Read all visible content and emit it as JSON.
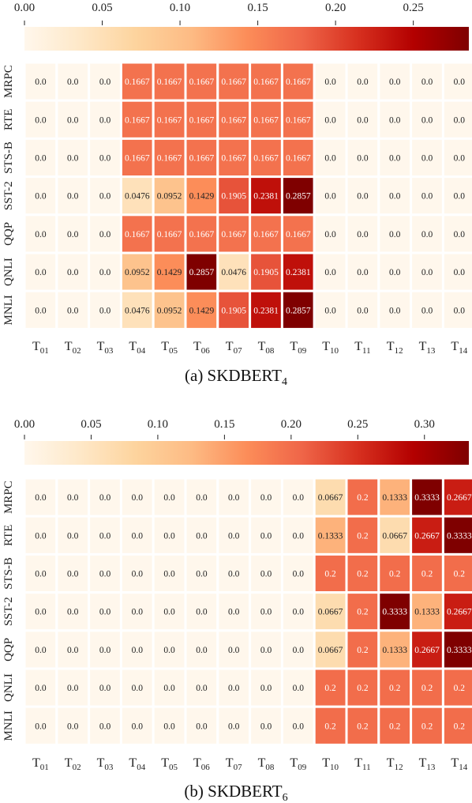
{
  "chart_data": [
    {
      "type": "heatmap",
      "caption_prefix": "(a) SKDBERT",
      "caption_subscript": "4",
      "colorbar": {
        "ticks": [
          "0.00",
          "0.05",
          "0.10",
          "0.15",
          "0.20",
          "0.25"
        ],
        "tick_values": [
          0,
          0.05,
          0.1,
          0.15,
          0.2,
          0.25
        ],
        "range": [
          0,
          0.2857
        ]
      },
      "rows": [
        "MRPC",
        "RTE",
        "STS-B",
        "SST-2",
        "QQP",
        "QNLI",
        "MNLI"
      ],
      "columns": [
        "01",
        "02",
        "03",
        "04",
        "05",
        "06",
        "07",
        "08",
        "09",
        "10",
        "11",
        "12",
        "13",
        "14"
      ],
      "column_prefix": "T",
      "values": [
        [
          0.0,
          0.0,
          0.0,
          0.1667,
          0.1667,
          0.1667,
          0.1667,
          0.1667,
          0.1667,
          0.0,
          0.0,
          0.0,
          0.0,
          0.0
        ],
        [
          0.0,
          0.0,
          0.0,
          0.1667,
          0.1667,
          0.1667,
          0.1667,
          0.1667,
          0.1667,
          0.0,
          0.0,
          0.0,
          0.0,
          0.0
        ],
        [
          0.0,
          0.0,
          0.0,
          0.1667,
          0.1667,
          0.1667,
          0.1667,
          0.1667,
          0.1667,
          0.0,
          0.0,
          0.0,
          0.0,
          0.0
        ],
        [
          0.0,
          0.0,
          0.0,
          0.0476,
          0.0952,
          0.1429,
          0.1905,
          0.2381,
          0.2857,
          0.0,
          0.0,
          0.0,
          0.0,
          0.0
        ],
        [
          0.0,
          0.0,
          0.0,
          0.1667,
          0.1667,
          0.1667,
          0.1667,
          0.1667,
          0.1667,
          0.0,
          0.0,
          0.0,
          0.0,
          0.0
        ],
        [
          0.0,
          0.0,
          0.0,
          0.0952,
          0.1429,
          0.2857,
          0.0476,
          0.1905,
          0.2381,
          0.0,
          0.0,
          0.0,
          0.0,
          0.0
        ],
        [
          0.0,
          0.0,
          0.0,
          0.0476,
          0.0952,
          0.1429,
          0.1905,
          0.2381,
          0.2857,
          0.0,
          0.0,
          0.0,
          0.0,
          0.0
        ]
      ]
    },
    {
      "type": "heatmap",
      "caption_prefix": "(b) SKDBERT",
      "caption_subscript": "6",
      "colorbar": {
        "ticks": [
          "0.00",
          "0.05",
          "0.10",
          "0.15",
          "0.20",
          "0.25",
          "0.30"
        ],
        "tick_values": [
          0,
          0.05,
          0.1,
          0.15,
          0.2,
          0.25,
          0.3
        ],
        "range": [
          0,
          0.3333
        ]
      },
      "rows": [
        "MRPC",
        "RTE",
        "STS-B",
        "SST-2",
        "QQP",
        "QNLI",
        "MNLI"
      ],
      "columns": [
        "01",
        "02",
        "03",
        "04",
        "05",
        "06",
        "07",
        "08",
        "09",
        "10",
        "11",
        "12",
        "13",
        "14"
      ],
      "column_prefix": "T",
      "values": [
        [
          0.0,
          0.0,
          0.0,
          0.0,
          0.0,
          0.0,
          0.0,
          0.0,
          0.0,
          0.0667,
          0.2,
          0.1333,
          0.3333,
          0.2667
        ],
        [
          0.0,
          0.0,
          0.0,
          0.0,
          0.0,
          0.0,
          0.0,
          0.0,
          0.0,
          0.1333,
          0.2,
          0.0667,
          0.2667,
          0.3333
        ],
        [
          0.0,
          0.0,
          0.0,
          0.0,
          0.0,
          0.0,
          0.0,
          0.0,
          0.0,
          0.2,
          0.2,
          0.2,
          0.2,
          0.2
        ],
        [
          0.0,
          0.0,
          0.0,
          0.0,
          0.0,
          0.0,
          0.0,
          0.0,
          0.0,
          0.0667,
          0.2,
          0.3333,
          0.1333,
          0.2667
        ],
        [
          0.0,
          0.0,
          0.0,
          0.0,
          0.0,
          0.0,
          0.0,
          0.0,
          0.0,
          0.0667,
          0.2,
          0.1333,
          0.2667,
          0.3333
        ],
        [
          0.0,
          0.0,
          0.0,
          0.0,
          0.0,
          0.0,
          0.0,
          0.0,
          0.0,
          0.2,
          0.2,
          0.2,
          0.2,
          0.2
        ],
        [
          0.0,
          0.0,
          0.0,
          0.0,
          0.0,
          0.0,
          0.0,
          0.0,
          0.0,
          0.2,
          0.2,
          0.2,
          0.2,
          0.2
        ]
      ]
    }
  ],
  "colormap": {
    "name": "OrRd",
    "stops": [
      "#fff7ec",
      "#fee8c8",
      "#fdd49e",
      "#fdbb84",
      "#fc8d59",
      "#ef6548",
      "#d7301f",
      "#b30000",
      "#7f0000"
    ]
  }
}
